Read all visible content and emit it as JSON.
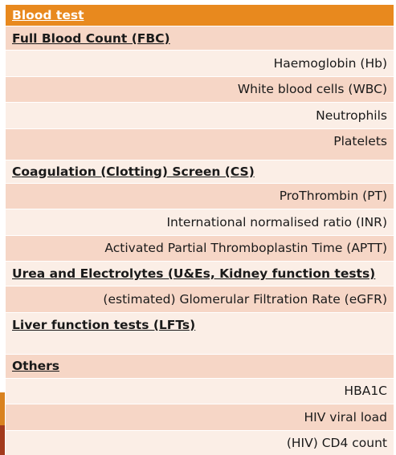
{
  "table": {
    "header": "Blood test",
    "rows": [
      {
        "type": "section",
        "text": "Full Blood Count (FBC)"
      },
      {
        "type": "item",
        "text": "Haemoglobin (Hb)"
      },
      {
        "type": "item",
        "text": "White blood cells (WBC)"
      },
      {
        "type": "item",
        "text": "Neutrophils"
      },
      {
        "type": "item",
        "text": "Platelets"
      },
      {
        "type": "section",
        "text": "Coagulation (Clotting) Screen (CS)"
      },
      {
        "type": "item",
        "text": "ProThrombin (PT)"
      },
      {
        "type": "item",
        "text": "International normalised ratio (INR)"
      },
      {
        "type": "item",
        "text": "Activated Partial Thromboplastin Time (APTT)"
      },
      {
        "type": "section",
        "text": "Urea and Electrolytes (U&Es, Kidney function tests)"
      },
      {
        "type": "item",
        "text": "(estimated) Glomerular Filtration Rate (eGFR)"
      },
      {
        "type": "section",
        "text": "Liver function tests (LFTs)"
      },
      {
        "type": "section",
        "text": "Others"
      },
      {
        "type": "item",
        "text": "HBA1C"
      },
      {
        "type": "item",
        "text": "HIV viral load"
      },
      {
        "type": "item",
        "text": "(HIV) CD4 count"
      }
    ]
  }
}
